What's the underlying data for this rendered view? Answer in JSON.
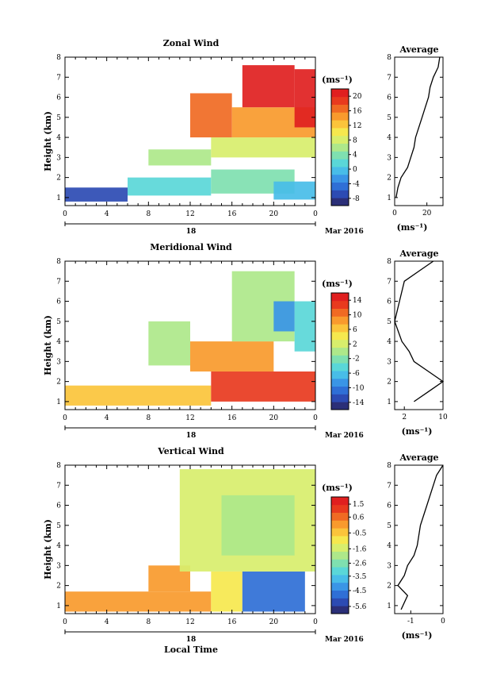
{
  "colors": {
    "palette": [
      "#2b2f78",
      "#2c4bb3",
      "#2f6fd6",
      "#3a95e6",
      "#48bde8",
      "#5ad7d8",
      "#7fe0b0",
      "#aee88a",
      "#d8ee6c",
      "#f6e84e",
      "#fbc43b",
      "#f99a2d",
      "#f06a23",
      "#e83a1e",
      "#e01f1f"
    ],
    "axis": "#000000",
    "background": "#ffffff"
  },
  "chart_data": [
    {
      "type": "heatmap",
      "title": "Zonal Wind",
      "xlabel": "",
      "ylabel": "Height (km)",
      "xlim": [
        0,
        24
      ],
      "ylim": [
        0.6,
        8
      ],
      "x_ticks": [
        "0",
        "4",
        "8",
        "12",
        "16",
        "20",
        "0"
      ],
      "y_ticks": [
        "1",
        "2",
        "3",
        "4",
        "5",
        "6",
        "7",
        "8"
      ],
      "date_row": {
        "label": "18",
        "month": "Mar 2016"
      },
      "colorbar": {
        "unit": "(ms⁻¹)",
        "ticks": [
          "20",
          "16",
          "12",
          "8",
          "4",
          "0",
          "-4",
          "-8"
        ],
        "range": [
          -10,
          22
        ]
      },
      "profile": {
        "title": "Average",
        "xlabel": "(ms⁻¹)",
        "x_ticks": [
          "0",
          "20"
        ],
        "xlim": [
          0,
          30
        ],
        "y_ticks": [
          "1",
          "2",
          "3",
          "4",
          "5",
          "6",
          "7",
          "8"
        ],
        "points": [
          [
            1,
            0.9
          ],
          [
            1.5,
            2
          ],
          [
            2,
            4
          ],
          [
            2.5,
            8
          ],
          [
            3,
            10
          ],
          [
            3.5,
            12
          ],
          [
            4,
            13
          ],
          [
            4.5,
            15
          ],
          [
            5,
            17
          ],
          [
            5.5,
            19
          ],
          [
            6,
            21
          ],
          [
            6.5,
            22
          ],
          [
            7,
            24
          ],
          [
            7.5,
            27
          ],
          [
            8,
            28
          ]
        ]
      },
      "fields": [
        {
          "t0": 0,
          "t1": 6,
          "z0": 0.8,
          "z1": 1.5,
          "v": -7
        },
        {
          "t0": 6,
          "t1": 14,
          "z0": 1.1,
          "z1": 2.0,
          "v": 2
        },
        {
          "t0": 14,
          "t1": 22,
          "z0": 1.2,
          "z1": 2.4,
          "v": 3
        },
        {
          "t0": 20,
          "t1": 24,
          "z0": 0.9,
          "z1": 1.8,
          "v": -1
        },
        {
          "t0": 8,
          "t1": 14,
          "z0": 2.6,
          "z1": 3.4,
          "v": 6
        },
        {
          "t0": 14,
          "t1": 24,
          "z0": 3.0,
          "z1": 4.0,
          "v": 9
        },
        {
          "t0": 12,
          "t1": 16,
          "z0": 4.0,
          "z1": 6.2,
          "v": 17
        },
        {
          "t0": 16,
          "t1": 24,
          "z0": 4.0,
          "z1": 5.5,
          "v": 14
        },
        {
          "t0": 17,
          "t1": 22,
          "z0": 5.5,
          "z1": 7.6,
          "v": 20
        },
        {
          "t0": 22,
          "t1": 24,
          "z0": 4.5,
          "z1": 7.4,
          "v": 21
        }
      ]
    },
    {
      "type": "heatmap",
      "title": "Meridional Wind",
      "xlabel": "",
      "ylabel": "Height (km)",
      "xlim": [
        0,
        24
      ],
      "ylim": [
        0.6,
        8
      ],
      "x_ticks": [
        "0",
        "4",
        "8",
        "12",
        "16",
        "20",
        "0"
      ],
      "y_ticks": [
        "1",
        "2",
        "3",
        "4",
        "5",
        "6",
        "7",
        "8"
      ],
      "date_row": {
        "label": "18",
        "month": "Mar 2016"
      },
      "colorbar": {
        "unit": "(ms⁻¹)",
        "ticks": [
          "14",
          "10",
          "6",
          "2",
          "-2",
          "-6",
          "-10",
          "-14"
        ],
        "range": [
          -16,
          16
        ]
      },
      "profile": {
        "title": "Average",
        "xlabel": "(ms⁻¹)",
        "x_ticks": [
          "2",
          "10"
        ],
        "xlim": [
          0,
          10
        ],
        "y_ticks": [
          "1",
          "2",
          "3",
          "4",
          "5",
          "6",
          "7",
          "8"
        ],
        "points": [
          [
            1,
            4
          ],
          [
            1.5,
            7
          ],
          [
            2,
            10
          ],
          [
            2.5,
            7
          ],
          [
            3,
            4
          ],
          [
            3.5,
            3
          ],
          [
            4,
            1.5
          ],
          [
            5,
            0
          ],
          [
            6,
            1
          ],
          [
            7,
            2
          ],
          [
            7.5,
            5
          ],
          [
            8,
            8
          ]
        ]
      },
      "fields": [
        {
          "t0": 0,
          "t1": 14,
          "z0": 0.8,
          "z1": 1.8,
          "v": 6
        },
        {
          "t0": 14,
          "t1": 24,
          "z0": 1.0,
          "z1": 2.5,
          "v": 12
        },
        {
          "t0": 12,
          "t1": 20,
          "z0": 2.5,
          "z1": 4.0,
          "v": 9
        },
        {
          "t0": 8,
          "t1": 12,
          "z0": 2.8,
          "z1": 5.0,
          "v": 0
        },
        {
          "t0": 16,
          "t1": 22,
          "z0": 4.0,
          "z1": 7.5,
          "v": 1
        },
        {
          "t0": 22,
          "t1": 24,
          "z0": 3.5,
          "z1": 6.0,
          "v": -4
        },
        {
          "t0": 20,
          "t1": 22,
          "z0": 4.5,
          "z1": 6.0,
          "v": -8
        }
      ]
    },
    {
      "type": "heatmap",
      "title": "Vertical Wind",
      "xlabel": "Local Time",
      "ylabel": "Height (km)",
      "xlim": [
        0,
        24
      ],
      "ylim": [
        0.6,
        8
      ],
      "x_ticks": [
        "0",
        "4",
        "8",
        "12",
        "16",
        "20",
        "0"
      ],
      "y_ticks": [
        "1",
        "2",
        "3",
        "4",
        "5",
        "6",
        "7",
        "8"
      ],
      "date_row": {
        "label": "18",
        "month": "Mar 2016"
      },
      "colorbar": {
        "unit": "(ms⁻¹)",
        "ticks": [
          "1.5",
          "0.6",
          "-0.5",
          "-1.6",
          "-2.6",
          "-3.5",
          "-4.5",
          "-5.6"
        ],
        "range": [
          -6.1,
          2.0
        ]
      },
      "profile": {
        "title": "Average",
        "xlabel": "(ms⁻¹)",
        "x_ticks": [
          "-1",
          "0"
        ],
        "xlim": [
          -1.5,
          0
        ],
        "y_ticks": [
          "1",
          "2",
          "3",
          "4",
          "5",
          "6",
          "7",
          "8"
        ],
        "points": [
          [
            0.8,
            -1.3
          ],
          [
            1.5,
            -1.1
          ],
          [
            2,
            -1.4
          ],
          [
            2.5,
            -1.2
          ],
          [
            3,
            -1.1
          ],
          [
            3.5,
            -0.9
          ],
          [
            4,
            -0.8
          ],
          [
            5,
            -0.7
          ],
          [
            6,
            -0.5
          ],
          [
            7,
            -0.3
          ],
          [
            7.5,
            -0.2
          ],
          [
            8,
            0
          ]
        ]
      },
      "fields": [
        {
          "t0": 0,
          "t1": 14,
          "z0": 0.7,
          "z1": 1.7,
          "v": 0.2
        },
        {
          "t0": 8,
          "t1": 12,
          "z0": 1.7,
          "z1": 3.0,
          "v": 0.3
        },
        {
          "t0": 14,
          "t1": 17,
          "z0": 0.7,
          "z1": 2.7,
          "v": -1.0
        },
        {
          "t0": 17,
          "t1": 23,
          "z0": 0.7,
          "z1": 2.7,
          "v": -5.0
        },
        {
          "t0": 11,
          "t1": 24,
          "z0": 2.7,
          "z1": 7.8,
          "v": -1.5
        },
        {
          "t0": 15,
          "t1": 22,
          "z0": 3.5,
          "z1": 6.5,
          "v": -2.0
        }
      ]
    }
  ]
}
